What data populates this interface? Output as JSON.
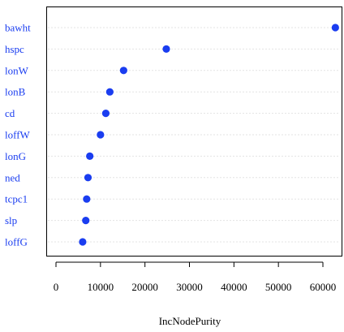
{
  "chart_data": {
    "type": "scatter",
    "variant": "dotchart",
    "title": "",
    "xlabel": "IncNodePurity",
    "ylabel": "",
    "xlim": [
      -1500,
      64000
    ],
    "xticks": [
      0,
      10000,
      20000,
      30000,
      40000,
      50000,
      60000
    ],
    "grid": "dotted horizontal lines per category",
    "point_color": "#1a3df0",
    "label_color": "#1a3df0",
    "categories": [
      "bawht",
      "hspc",
      "lonW",
      "lonB",
      "cd",
      "loffW",
      "lonG",
      "ned",
      "tcpc1",
      "slp",
      "loffG"
    ],
    "values": [
      62800,
      24800,
      15200,
      12100,
      11200,
      10000,
      7600,
      7200,
      6900,
      6700,
      6000
    ]
  }
}
